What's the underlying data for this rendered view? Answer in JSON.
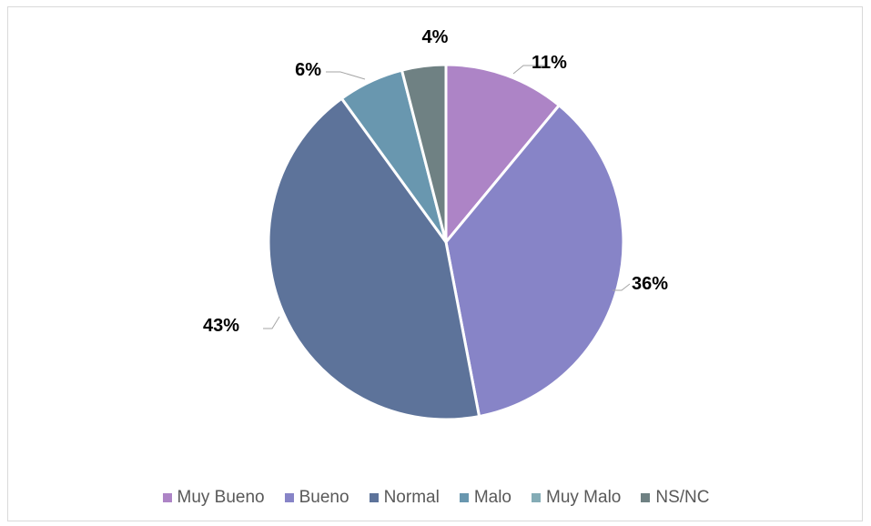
{
  "chart_data": {
    "type": "pie",
    "title": "",
    "categories": [
      "Muy Bueno",
      "Bueno",
      "Normal",
      "Malo",
      "Muy Malo",
      "NS/NC"
    ],
    "values": [
      11,
      36,
      43,
      6,
      0,
      4
    ],
    "labels": [
      "11%",
      "36%",
      "43%",
      "6%",
      "",
      "4%"
    ],
    "colors": [
      "#ad84c6",
      "#8784c7",
      "#5d739a",
      "#6997af",
      "#84acb6",
      "#6f8183"
    ],
    "legend_position": "bottom",
    "start_angle_deg": 0,
    "direction": "clockwise"
  }
}
